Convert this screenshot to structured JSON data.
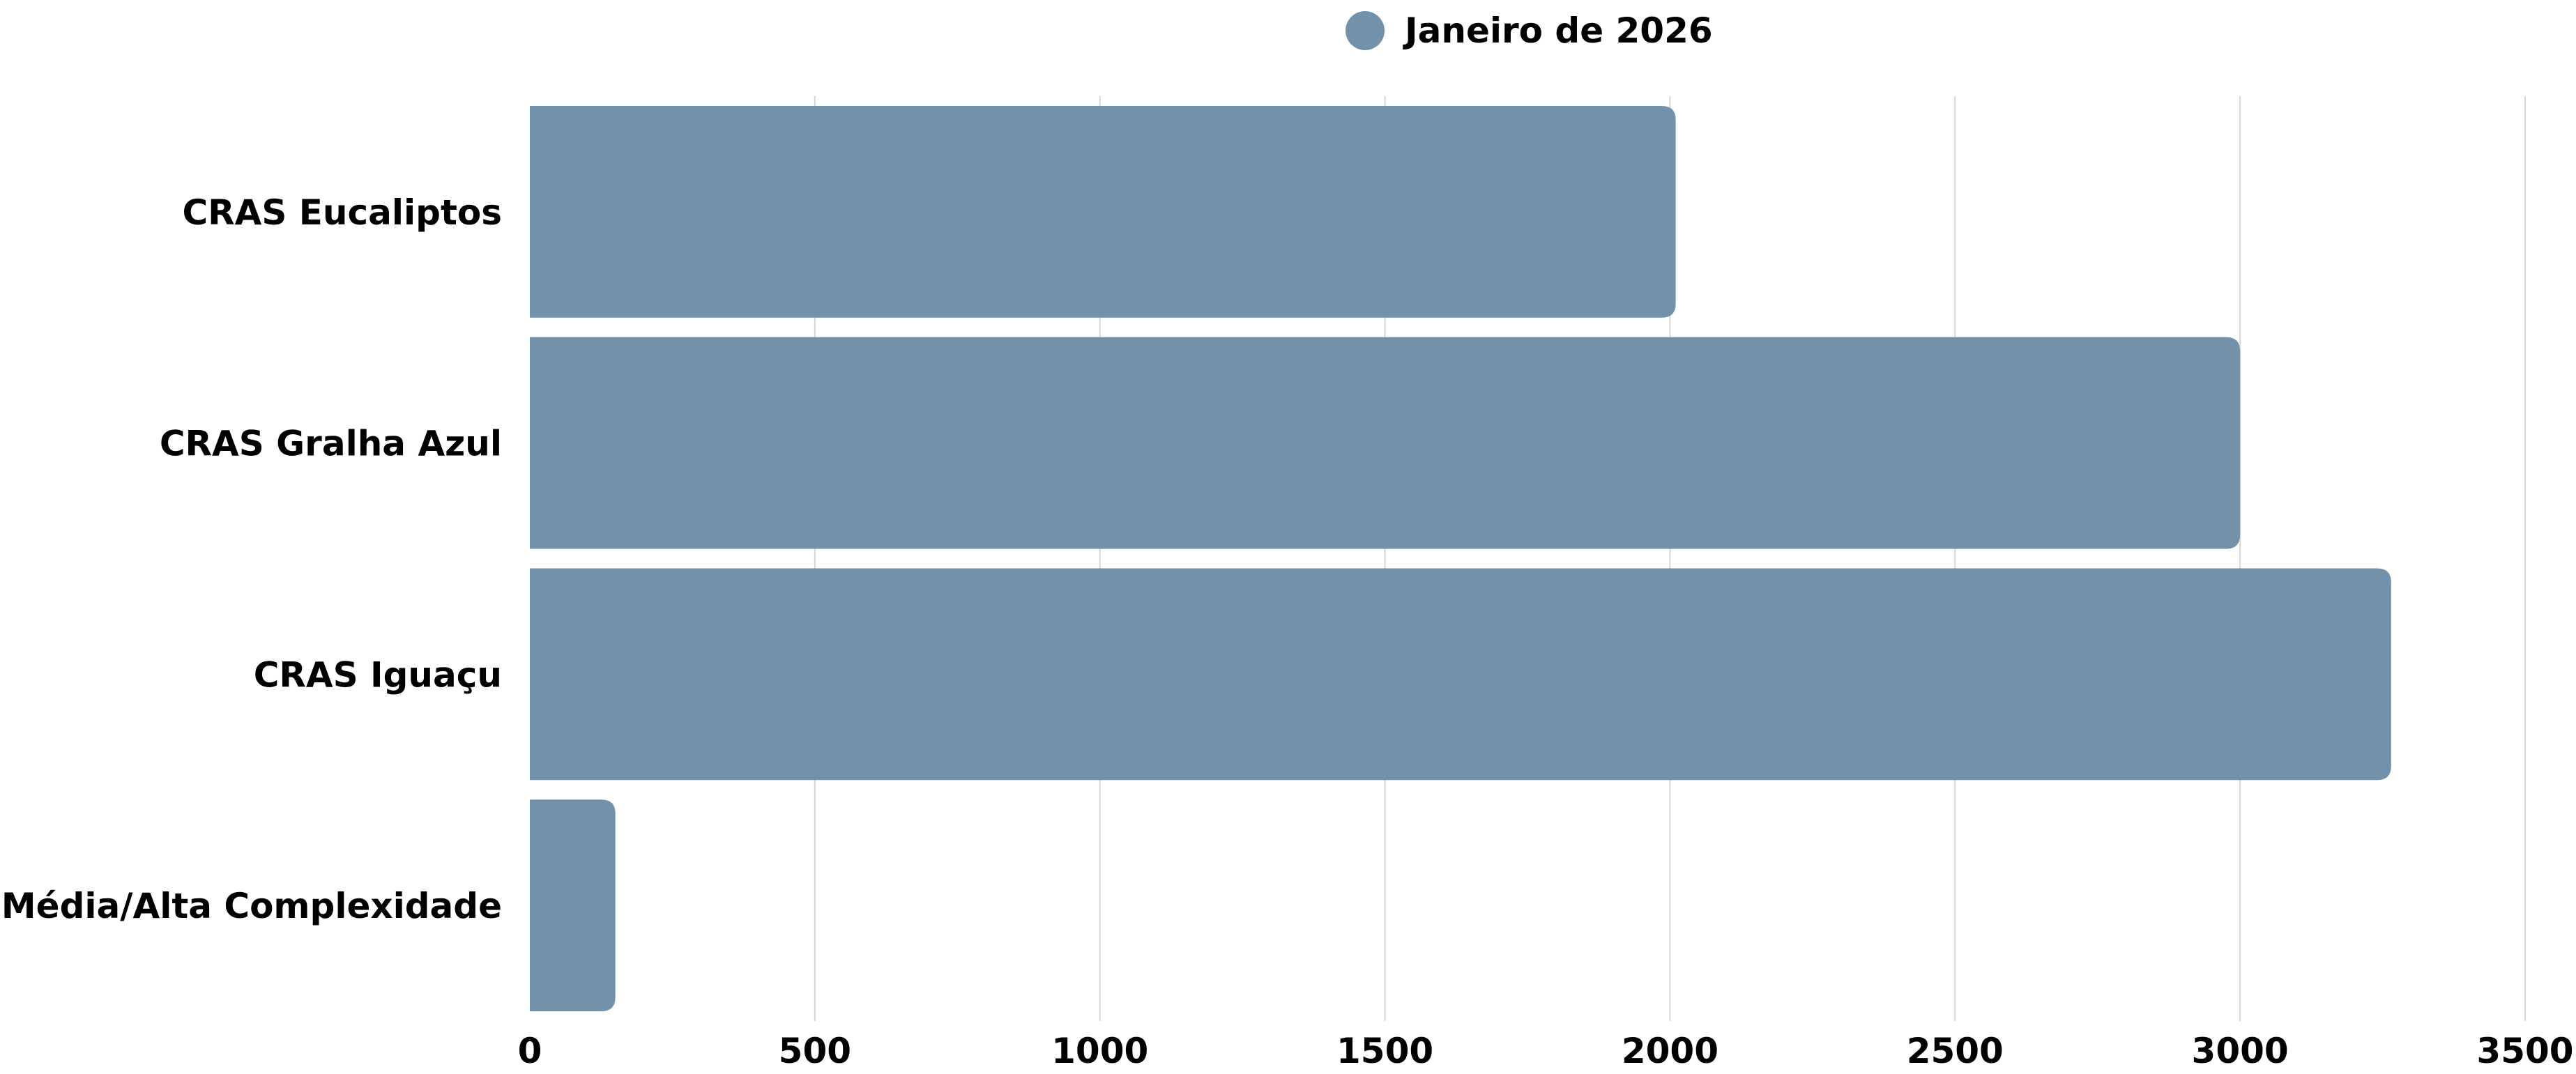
{
  "chart_data": {
    "type": "bar",
    "orientation": "horizontal",
    "title": "",
    "xlabel": "",
    "ylabel": "",
    "categories": [
      "CRAS Eucaliptos",
      "CRAS Gralha Azul",
      "CRAS Iguaçu",
      "Média/Alta Complexidade"
    ],
    "series": [
      {
        "name": "Janeiro de 2026",
        "color": "#7392AA",
        "values": [
          2010,
          3000,
          3265,
          150
        ]
      }
    ],
    "xlim": [
      0,
      3500
    ],
    "x_ticks": [
      0,
      500,
      1000,
      1500,
      2000,
      2500,
      3000,
      3500
    ],
    "grid": "vertical",
    "legend_position": "top-center",
    "bar_corner": "rounded-right"
  }
}
